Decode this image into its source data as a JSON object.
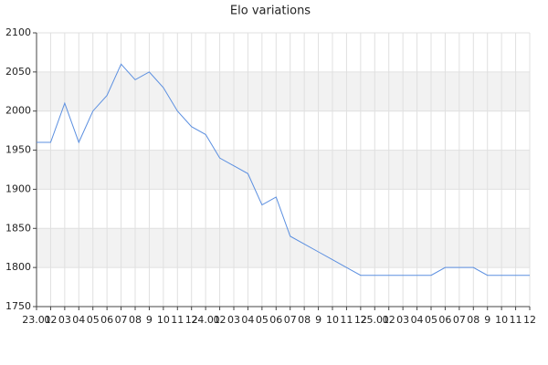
{
  "chart_data": {
    "type": "line",
    "title": "Elo variations",
    "categories": [
      "23.01",
      "02",
      "03",
      "04",
      "05",
      "06",
      "07",
      "08",
      "9",
      "10",
      "11",
      "12",
      "24.01",
      "02",
      "03",
      "04",
      "05",
      "06",
      "07",
      "08",
      "9",
      "10",
      "11",
      "12",
      "25.01",
      "02",
      "03",
      "04",
      "05",
      "06",
      "07",
      "08",
      "9",
      "10",
      "11",
      "12"
    ],
    "values": [
      1960,
      1960,
      2010,
      1960,
      2000,
      2020,
      2060,
      2040,
      2050,
      2030,
      2000,
      1980,
      1970,
      1940,
      1930,
      1920,
      1880,
      1890,
      1840,
      1830,
      1820,
      1810,
      1800,
      1790,
      1790,
      1790,
      1790,
      1790,
      1790,
      1800,
      1800,
      1800,
      1790,
      1790,
      1790,
      1790
    ],
    "color": "#5b8fe0",
    "ylim": [
      1750,
      2100
    ],
    "yticks": [
      1750,
      1800,
      1850,
      1900,
      1950,
      2000,
      2050,
      2100
    ],
    "grid": true
  }
}
